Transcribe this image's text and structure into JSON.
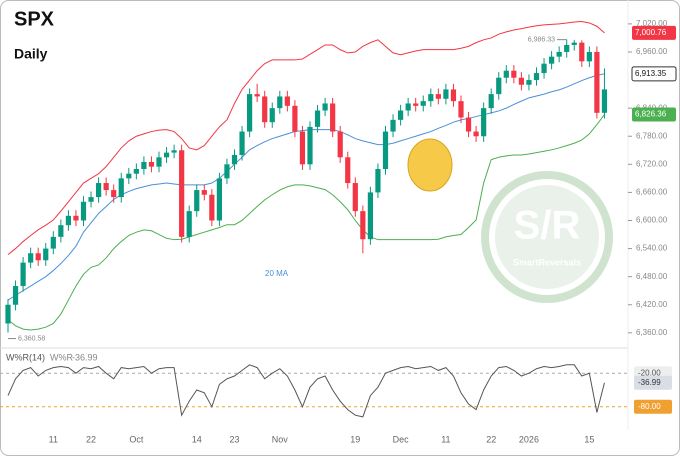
{
  "chart_data": {
    "type": "candlestick",
    "title": "SPX",
    "subtitle": "Daily",
    "categories": [
      null,
      null,
      null,
      null,
      null,
      null,
      "11",
      null,
      null,
      null,
      null,
      "22",
      null,
      null,
      null,
      null,
      null,
      "Oct",
      null,
      null,
      null,
      null,
      null,
      null,
      null,
      "14",
      null,
      null,
      null,
      null,
      "23",
      null,
      null,
      null,
      null,
      null,
      "Nov",
      null,
      null,
      null,
      null,
      null,
      null,
      null,
      null,
      null,
      "19",
      null,
      null,
      null,
      null,
      null,
      "Dec",
      null,
      null,
      null,
      null,
      null,
      "11",
      null,
      null,
      null,
      null,
      null,
      "22",
      null,
      null,
      null,
      null,
      "2026",
      null,
      null,
      null,
      null,
      null,
      null,
      null,
      "15",
      null,
      null
    ],
    "open": [
      6380,
      6420,
      6460,
      6510,
      6530,
      6515,
      6540,
      6565,
      6590,
      6610,
      6600,
      6640,
      6650,
      6680,
      6665,
      6650,
      6690,
      6700,
      6710,
      6725,
      6715,
      6735,
      6745,
      6750,
      6565,
      6620,
      6665,
      6655,
      6600,
      6690,
      6720,
      6740,
      6790,
      6870,
      6865,
      6810,
      6840,
      6865,
      6845,
      6790,
      6720,
      6800,
      6835,
      6850,
      6790,
      6735,
      6680,
      6620,
      6560,
      6660,
      6710,
      6790,
      6815,
      6835,
      6850,
      6845,
      6855,
      6870,
      6860,
      6880,
      6855,
      6820,
      6790,
      6780,
      6840,
      6870,
      6905,
      6920,
      6905,
      6890,
      6900,
      6915,
      6935,
      6950,
      6960,
      6975,
      6980,
      6940,
      6960,
      6830
    ],
    "high": [
      6432,
      6472,
      6522,
      6542,
      6542,
      6552,
      6577,
      6602,
      6622,
      6622,
      6652,
      6662,
      6692,
      6692,
      6677,
      6702,
      6712,
      6722,
      6737,
      6737,
      6747,
      6757,
      6762,
      6762,
      6632,
      6677,
      6677,
      6667,
      6702,
      6732,
      6752,
      6802,
      6882,
      6892,
      6877,
      6852,
      6877,
      6877,
      6857,
      6802,
      6812,
      6847,
      6862,
      6862,
      6802,
      6747,
      6692,
      6632,
      6672,
      6722,
      6802,
      6827,
      6847,
      6862,
      6862,
      6867,
      6882,
      6882,
      6892,
      6892,
      6867,
      6832,
      6802,
      6852,
      6882,
      6917,
      6932,
      6932,
      6917,
      6912,
      6927,
      6947,
      6962,
      6972,
      6986.33,
      6986,
      6985,
      6972,
      6972,
      6925
    ],
    "low": [
      6360.58,
      6408,
      6448,
      6498,
      6503,
      6503,
      6528,
      6553,
      6578,
      6588,
      6588,
      6628,
      6638,
      6653,
      6638,
      6638,
      6678,
      6688,
      6698,
      6703,
      6703,
      6723,
      6733,
      6553,
      6553,
      6608,
      6643,
      6588,
      6588,
      6678,
      6708,
      6728,
      6778,
      6853,
      6798,
      6798,
      6828,
      6833,
      6778,
      6708,
      6708,
      6788,
      6823,
      6778,
      6723,
      6668,
      6608,
      6530,
      6548,
      6648,
      6698,
      6778,
      6803,
      6823,
      6833,
      6833,
      6843,
      6848,
      6848,
      6843,
      6808,
      6778,
      6768,
      6768,
      6828,
      6858,
      6893,
      6893,
      6878,
      6878,
      6888,
      6903,
      6923,
      6938,
      6948,
      6963,
      6928,
      6928,
      6818,
      6818
    ],
    "close": [
      6420,
      6460,
      6510,
      6530,
      6515,
      6540,
      6565,
      6590,
      6610,
      6600,
      6640,
      6650,
      6680,
      6665,
      6650,
      6690,
      6700,
      6710,
      6725,
      6715,
      6735,
      6745,
      6750,
      6565,
      6620,
      6665,
      6655,
      6600,
      6690,
      6720,
      6740,
      6790,
      6870,
      6865,
      6810,
      6840,
      6865,
      6845,
      6790,
      6720,
      6800,
      6835,
      6850,
      6790,
      6735,
      6680,
      6620,
      6560,
      6660,
      6710,
      6790,
      6815,
      6835,
      6850,
      6845,
      6855,
      6870,
      6860,
      6880,
      6855,
      6820,
      6790,
      6780,
      6840,
      6870,
      6905,
      6920,
      6905,
      6890,
      6900,
      6915,
      6935,
      6950,
      6960,
      6975,
      6980,
      6940,
      6960,
      6830,
      6880
    ],
    "series": [
      {
        "name": "20 MA",
        "color": "#4a90d9",
        "values": [
          6430,
          6440,
          6450,
          6460,
          6470,
          6480,
          6493,
          6508,
          6525,
          6545,
          6575,
          6595,
          6615,
          6630,
          6645,
          6655,
          6662,
          6668,
          6672,
          6676,
          6678,
          6680,
          6678,
          6676,
          6676,
          6676,
          6676,
          6680,
          6690,
          6705,
          6720,
          6735,
          6751,
          6760,
          6768,
          6775,
          6780,
          6785,
          6790,
          6792,
          6794,
          6794,
          6794,
          6794,
          6790,
          6783,
          6775,
          6770,
          6766,
          6762,
          6762,
          6765,
          6770,
          6775,
          6780,
          6785,
          6790,
          6797,
          6803,
          6810,
          6815,
          6818,
          6822,
          6826,
          6830,
          6834,
          6840,
          6848,
          6855,
          6862,
          6866,
          6870,
          6875,
          6879,
          6885,
          6892,
          6899,
          6905,
          6910,
          6913.35
        ],
        "value_labels": [
          null,
          null,
          null,
          null,
          null,
          null,
          null,
          null,
          null,
          null,
          null,
          null,
          null,
          null,
          null,
          null,
          null,
          null,
          null,
          null,
          null,
          null,
          null,
          null,
          null,
          null,
          null,
          null,
          null,
          null,
          null,
          null,
          null,
          null,
          null,
          null,
          null,
          null,
          null,
          null,
          null,
          null,
          null,
          null,
          null,
          null,
          null,
          null,
          null,
          null,
          null,
          null,
          null,
          null,
          null,
          null,
          null,
          null,
          null,
          null,
          null,
          null,
          null,
          null,
          null,
          null,
          null,
          null,
          null,
          null,
          null,
          null,
          null,
          null,
          null,
          null,
          null,
          null,
          null,
          "6,913.35"
        ]
      },
      {
        "color": "#f23645",
        "values": [
          6527,
          6540,
          6555,
          6568,
          6580,
          6590,
          6601,
          6620,
          6640,
          6660,
          6680,
          6690,
          6700,
          6715,
          6735,
          6755,
          6770,
          6780,
          6785,
          6790,
          6793,
          6794,
          6790,
          6775,
          6755,
          6751,
          6760,
          6780,
          6800,
          6815,
          6850,
          6880,
          6900,
          6920,
          6935,
          6943,
          6943,
          6943,
          6943,
          6945,
          6955,
          6965,
          6975,
          6975,
          6965,
          6958,
          6960,
          6972,
          6980,
          6986,
          6972,
          6958,
          6954,
          6958,
          6962,
          6965,
          6965,
          6965,
          6965,
          6965,
          6968,
          6972,
          6980,
          6986,
          6990,
          6998,
          7003,
          7007,
          7010,
          7013,
          7016,
          7018,
          7019,
          7020,
          7022,
          7024,
          7025,
          7022,
          7015,
          7000.76
        ],
        "value_labels": [
          null,
          null,
          null,
          null,
          null,
          null,
          null,
          null,
          null,
          null,
          null,
          null,
          null,
          null,
          null,
          null,
          null,
          null,
          null,
          null,
          null,
          null,
          null,
          null,
          null,
          null,
          null,
          null,
          null,
          null,
          null,
          null,
          null,
          null,
          null,
          null,
          null,
          null,
          null,
          null,
          null,
          null,
          null,
          null,
          null,
          null,
          null,
          null,
          null,
          null,
          null,
          null,
          null,
          null,
          null,
          null,
          null,
          null,
          null,
          null,
          null,
          null,
          null,
          null,
          null,
          null,
          null,
          null,
          null,
          null,
          null,
          null,
          null,
          null,
          null,
          null,
          null,
          null,
          null,
          "7,000.76"
        ]
      },
      {
        "color": "#4caf50",
        "values": [
          6388,
          6375,
          6368,
          6366,
          6368,
          6372,
          6380,
          6400,
          6430,
          6460,
          6485,
          6500,
          6505,
          6520,
          6540,
          6555,
          6568,
          6575,
          6580,
          6578,
          6570,
          6562,
          6559,
          6560,
          6565,
          6570,
          6575,
          6580,
          6585,
          6591,
          6591,
          6600,
          6615,
          6630,
          6644,
          6655,
          6665,
          6672,
          6676,
          6676,
          6674,
          6670,
          6666,
          6655,
          6640,
          6623,
          6600,
          6580,
          6565,
          6559,
          6559,
          6559,
          6559,
          6559,
          6559,
          6559,
          6559,
          6560,
          6565,
          6568,
          6570,
          6585,
          6601,
          6680,
          6730,
          6735,
          6738,
          6740,
          6740,
          6742,
          6745,
          6748,
          6751,
          6755,
          6760,
          6765,
          6772,
          6785,
          6805,
          6826.36
        ],
        "value_labels": [
          null,
          null,
          null,
          null,
          null,
          null,
          null,
          null,
          null,
          null,
          null,
          null,
          null,
          null,
          null,
          null,
          null,
          null,
          null,
          null,
          null,
          null,
          null,
          null,
          null,
          null,
          null,
          null,
          null,
          null,
          null,
          null,
          null,
          null,
          null,
          null,
          null,
          null,
          null,
          null,
          null,
          null,
          null,
          null,
          null,
          null,
          null,
          null,
          null,
          null,
          null,
          null,
          null,
          null,
          null,
          null,
          null,
          null,
          null,
          null,
          null,
          null,
          null,
          null,
          null,
          null,
          null,
          null,
          null,
          null,
          null,
          null,
          null,
          null,
          null,
          null,
          null,
          null,
          null,
          "6,826.36"
        ]
      }
    ],
    "up_color": "#089981",
    "down_color": "#f23645",
    "ylim": [
      6334,
      7039
    ],
    "yticks": [
      {
        "value": 6360,
        "label": "6,360.00"
      },
      {
        "value": 6420,
        "label": "6,420.00"
      },
      {
        "value": 6480,
        "label": "6,480.00"
      },
      {
        "value": 6540,
        "label": "6,540.00"
      },
      {
        "value": 6600,
        "label": "6,600.00"
      },
      {
        "value": 6660,
        "label": "6,660.00"
      },
      {
        "value": 6720,
        "label": "6,720.00"
      },
      {
        "value": 6780,
        "label": "6,780.00"
      },
      {
        "value": 6840,
        "label": "6,840.00"
      },
      {
        "value": 6960,
        "label": "6,960.00"
      },
      {
        "value": 7020,
        "label": "7,020.00"
      }
    ],
    "annotations": [
      {
        "label": "6,986.33",
        "value": 6986.33
      },
      {
        "label": "6,360.58",
        "value": 6360.58
      }
    ],
    "watermark": [
      "S/R",
      "SmartReversals"
    ],
    "indicator": {
      "title": "W%R(14)",
      "name": "W%R",
      "color": "#555555",
      "values": [
        -60,
        -30,
        -15,
        -10,
        -25,
        -15,
        -10,
        -8,
        -10,
        -20,
        -10,
        -12,
        -8,
        -20,
        -30,
        -10,
        -12,
        -10,
        -8,
        -20,
        -12,
        -10,
        -10,
        -95,
        -70,
        -50,
        -55,
        -80,
        -40,
        -30,
        -25,
        -15,
        -5,
        -10,
        -30,
        -20,
        -12,
        -25,
        -50,
        -80,
        -45,
        -30,
        -25,
        -50,
        -70,
        -85,
        -95,
        -98,
        -60,
        -45,
        -20,
        -15,
        -10,
        -8,
        -12,
        -10,
        -8,
        -15,
        -10,
        -25,
        -55,
        -75,
        -85,
        -50,
        -25,
        -10,
        -8,
        -15,
        -25,
        -20,
        -12,
        -8,
        -10,
        -8,
        -5,
        -5,
        -25,
        -20,
        -90,
        -36.99
      ],
      "ylim": [
        -100,
        0
      ],
      "yticks": [
        {
          "value": -20,
          "label": "-20.00"
        },
        {
          "value": -80,
          "label": "-80.00"
        }
      ]
    }
  }
}
